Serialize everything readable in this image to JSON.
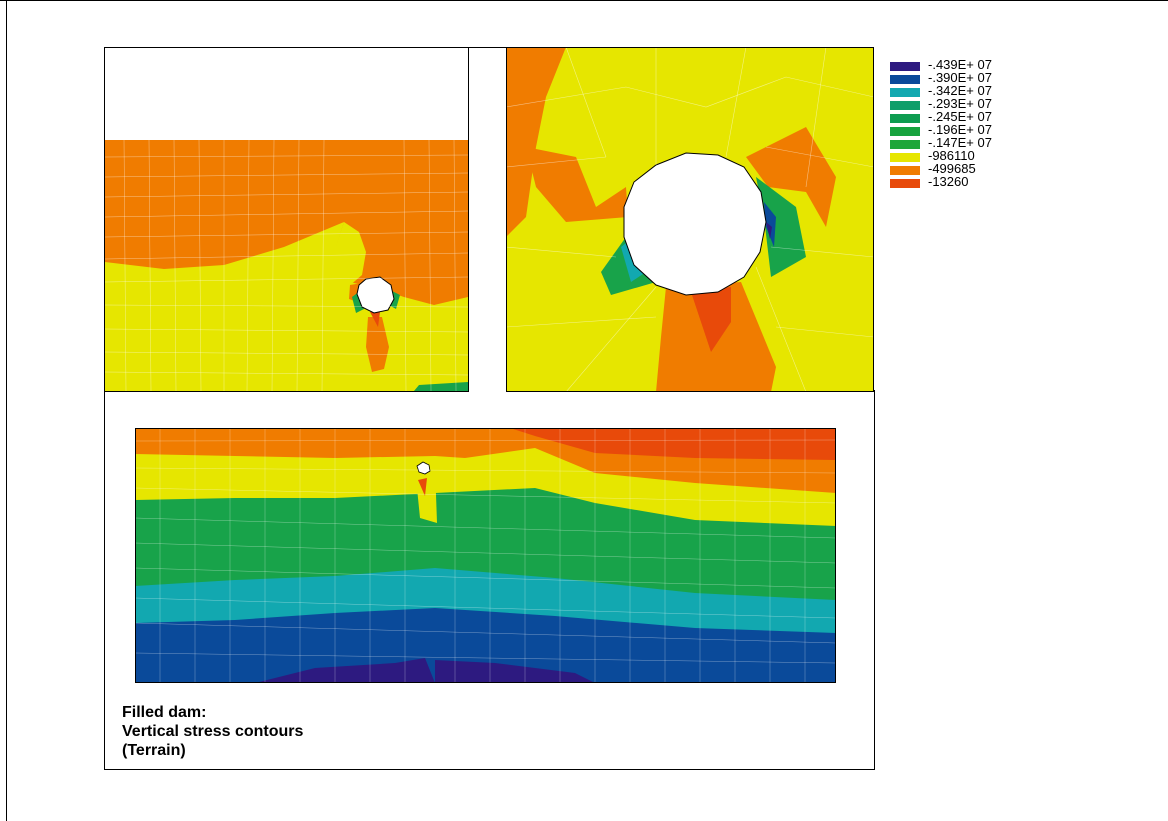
{
  "legend": {
    "items": [
      {
        "label": "-.439E+ 07",
        "color": "#2d1a80"
      },
      {
        "label": "-.390E+ 07",
        "color": "#0a4a9a"
      },
      {
        "label": "-.342E+ 07",
        "color": "#12a8b0"
      },
      {
        "label": "-.293E+ 07",
        "color": "#0f9e6a"
      },
      {
        "label": "-.245E+ 07",
        "color": "#0e9c50"
      },
      {
        "label": "-.196E+ 07",
        "color": "#17a33e"
      },
      {
        "label": "-.147E+ 07",
        "color": "#1ea63a"
      },
      {
        "label": "-986110",
        "color": "#e6e600"
      },
      {
        "label": "-499685",
        "color": "#f07c00"
      },
      {
        "label": "-13260",
        "color": "#e84a0a"
      }
    ]
  },
  "caption": {
    "line1": "Filled  dam:",
    "line2": "Vertical stress contours",
    "line3": "(Terrain)"
  },
  "colors": {
    "purple": "#2d1a80",
    "blue": "#0a4a9a",
    "cyan": "#12a8b0",
    "green": "#18a34a",
    "yellow": "#e6e600",
    "orange": "#f07c00",
    "redorange": "#e84a0a",
    "mesh": "#ffffff"
  }
}
